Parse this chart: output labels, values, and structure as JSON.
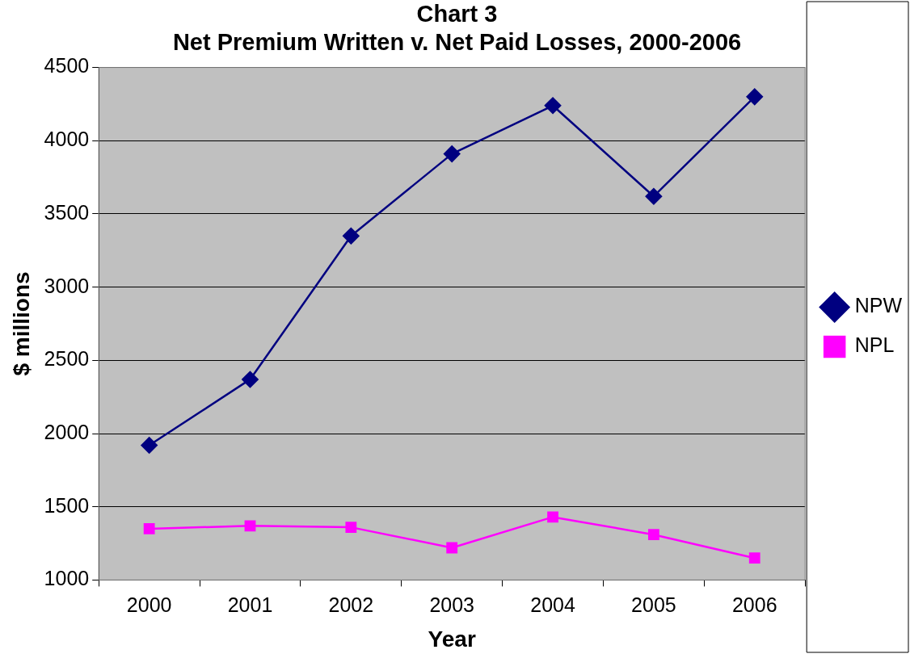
{
  "chart_data": {
    "type": "line",
    "title": [
      "Chart 3",
      "Net Premium Written v. Net Paid Losses, 2000-2006"
    ],
    "xlabel": "Year",
    "ylabel": "$ millions",
    "categories": [
      "2000",
      "2001",
      "2002",
      "2003",
      "2004",
      "2005",
      "2006"
    ],
    "series": [
      {
        "name": "NPW",
        "color": "#000080",
        "marker": "diamond",
        "values": [
          1920,
          2370,
          3350,
          3910,
          4240,
          3620,
          4300
        ]
      },
      {
        "name": "NPL",
        "color": "#ff00ff",
        "marker": "square",
        "values": [
          1350,
          1370,
          1360,
          1220,
          1430,
          1310,
          1150
        ]
      }
    ],
    "ylim": [
      1000,
      4500
    ],
    "yticks": [
      1000,
      1500,
      2000,
      2500,
      3000,
      3500,
      4000,
      4500
    ],
    "grid": "y",
    "legend": "right",
    "line_style": "solid"
  }
}
